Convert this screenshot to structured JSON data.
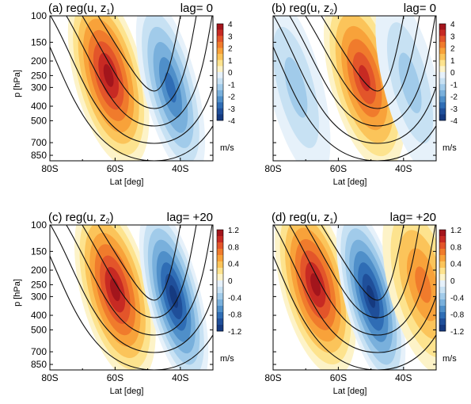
{
  "chart_data": [
    {
      "type": "heatmap",
      "panel": "(a)",
      "title_prefix": "(a) reg(u, z",
      "title_sub": "1",
      "title_suffix": ")",
      "lag_text": "lag= 0",
      "xlabel": "Lat [deg]",
      "ylabel": "p [hPa]",
      "x_ticks": [
        "80S",
        "60S",
        "40S"
      ],
      "y_ticks": [
        "100",
        "150",
        "200",
        "250",
        "300",
        "400",
        "500",
        "700",
        "850"
      ],
      "colorbar_ticks": [
        "4",
        "3",
        "2",
        "1",
        "0",
        "-1",
        "-2",
        "-3",
        "-4"
      ],
      "colorbar_unit": "m/s",
      "xlim": [
        -80,
        -30
      ],
      "ylim_hPa": [
        100,
        925
      ],
      "anomalies": [
        {
          "lat": -62,
          "p": 250,
          "value": 4.2
        },
        {
          "lat": -43,
          "p": 300,
          "value": -3.2
        }
      ]
    },
    {
      "type": "heatmap",
      "panel": "(b)",
      "title_prefix": "(b) reg(u, z",
      "title_sub": "2",
      "title_suffix": ")",
      "lag_text": "lag= 0",
      "xlabel": "Lat [deg]",
      "ylabel": "",
      "x_ticks": [
        "80S",
        "60S",
        "40S"
      ],
      "y_ticks": [],
      "colorbar_ticks": [
        "4",
        "3",
        "2",
        "1",
        "0",
        "-1",
        "-2",
        "-3",
        "-4"
      ],
      "colorbar_unit": "m/s",
      "xlim": [
        -80,
        -30
      ],
      "ylim_hPa": [
        100,
        925
      ],
      "anomalies": [
        {
          "lat": -52,
          "p": 260,
          "value": 3.6
        },
        {
          "lat": -73,
          "p": 300,
          "value": -1.4
        },
        {
          "lat": -38,
          "p": 280,
          "value": -1.6
        }
      ]
    },
    {
      "type": "heatmap",
      "panel": "(c)",
      "title_prefix": "(c) reg(u, z",
      "title_sub": "2",
      "title_suffix": ")",
      "lag_text": "lag= +20",
      "xlabel": "Lat [deg]",
      "ylabel": "p [hPa]",
      "x_ticks": [
        "80S",
        "60S",
        "40S"
      ],
      "y_ticks": [
        "100",
        "150",
        "200",
        "250",
        "300",
        "400",
        "500",
        "700",
        "850"
      ],
      "colorbar_ticks": [
        "1.2",
        "0.8",
        "0.4",
        "0",
        "-0.4",
        "-0.8",
        "-1.2"
      ],
      "colorbar_unit": "m/s",
      "xlim": [
        -80,
        -30
      ],
      "ylim_hPa": [
        100,
        925
      ],
      "anomalies": [
        {
          "lat": -60,
          "p": 270,
          "value": 1.2
        },
        {
          "lat": -42,
          "p": 300,
          "value": -1.2
        }
      ]
    },
    {
      "type": "heatmap",
      "panel": "(d)",
      "title_prefix": "(d) reg(u, z",
      "title_sub": "1",
      "title_suffix": ")",
      "lag_text": "lag= +20",
      "xlabel": "Lat [deg]",
      "ylabel": "",
      "x_ticks": [
        "80S",
        "60S",
        "40S"
      ],
      "y_ticks": [],
      "colorbar_ticks": [
        "1.2",
        "0.8",
        "0.4",
        "0",
        "-0.4",
        "-0.8",
        "-1.2"
      ],
      "colorbar_unit": "m/s",
      "xlim": [
        -80,
        -30
      ],
      "ylim_hPa": [
        100,
        925
      ],
      "anomalies": [
        {
          "lat": -67,
          "p": 250,
          "value": 1.3
        },
        {
          "lat": -50,
          "p": 300,
          "value": -1.3
        },
        {
          "lat": -34,
          "p": 250,
          "value": 0.7
        }
      ]
    }
  ],
  "colors": {
    "positive": [
      "#fdf3c8",
      "#fde38e",
      "#fbc45a",
      "#f8a23a",
      "#f07b2c",
      "#e3552a",
      "#c72a23",
      "#a3151c"
    ],
    "negative": [
      "#e6f1fa",
      "#c7e1f3",
      "#a1cbea",
      "#79b0dc",
      "#4f8fc9",
      "#2f6db5",
      "#1f4f9a",
      "#153a80"
    ]
  }
}
